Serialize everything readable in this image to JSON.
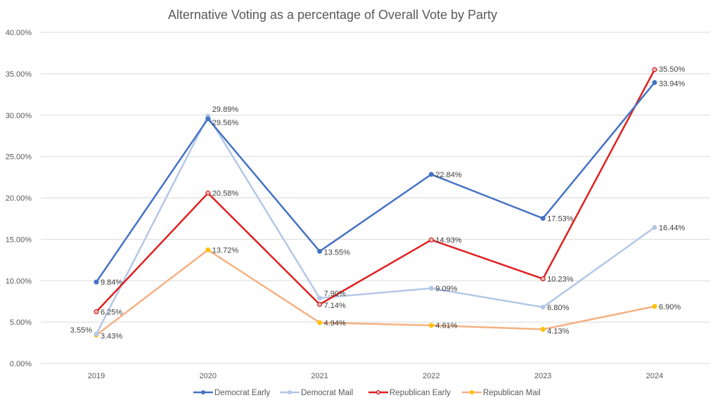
{
  "chart_data": {
    "type": "line",
    "title": "Alternative Voting as a percentage of Overall Vote by Party",
    "xlabel": "",
    "ylabel": "",
    "categories": [
      "2019",
      "2020",
      "2021",
      "2022",
      "2023",
      "2024"
    ],
    "ylim": [
      0,
      40
    ],
    "yticks": [
      0,
      5,
      10,
      15,
      20,
      25,
      30,
      35,
      40
    ],
    "ytick_labels": [
      "0.00%",
      "5.00%",
      "10.00%",
      "15.00%",
      "20.00%",
      "25.00%",
      "30.00%",
      "35.00%",
      "40.00%"
    ],
    "grid": true,
    "legend_position": "bottom",
    "series": [
      {
        "name": "Democrat Early",
        "color": "#4472c4",
        "values": [
          9.84,
          29.56,
          13.55,
          22.84,
          17.53,
          33.94
        ],
        "labels": [
          "9.84%",
          "29.56%",
          "13.55%",
          "22.84%",
          "17.53%",
          "33.94%"
        ]
      },
      {
        "name": "Democrat Mail",
        "color": "#b4c7e7",
        "values": [
          3.55,
          29.89,
          7.9,
          9.09,
          6.8,
          16.44
        ],
        "labels": [
          "3.55%",
          "29.89%",
          "7.90%",
          "9.09%",
          "6.80%",
          "16.44%"
        ]
      },
      {
        "name": "Republican Early",
        "color": "#e02020",
        "values": [
          6.25,
          20.58,
          7.14,
          14.93,
          10.23,
          35.5
        ],
        "labels": [
          "6.25%",
          "20.58%",
          "7.14%",
          "14.93%",
          "10.23%",
          "35.50%"
        ]
      },
      {
        "name": "Republican Mail",
        "color": "#f4b183",
        "marker_color": "#ffc000",
        "values": [
          3.43,
          13.72,
          4.94,
          4.61,
          4.13,
          6.9
        ],
        "labels": [
          "3.43%",
          "13.72%",
          "4.94%",
          "4.61%",
          "4.13%",
          "6.90%"
        ]
      }
    ]
  }
}
